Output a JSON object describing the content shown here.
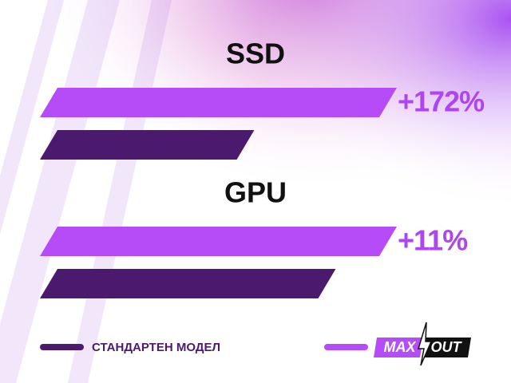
{
  "chart_data": {
    "type": "bar",
    "orientation": "horizontal",
    "categories": [
      "SSD",
      "GPU"
    ],
    "series": [
      {
        "name": "СТАНДАРТЕН МОДЕЛ",
        "color": "#4b1a6e",
        "values": [
          58,
          82
        ]
      },
      {
        "name": "MAX OUT",
        "color": "#b54cf7",
        "values": [
          100,
          100
        ]
      }
    ],
    "annotations": [
      {
        "value": 172,
        "label": "+172%"
      },
      {
        "value": 11,
        "label": "+11%"
      }
    ],
    "annotation_color": "#ad45f0",
    "xlim": [
      0,
      100
    ]
  }
}
